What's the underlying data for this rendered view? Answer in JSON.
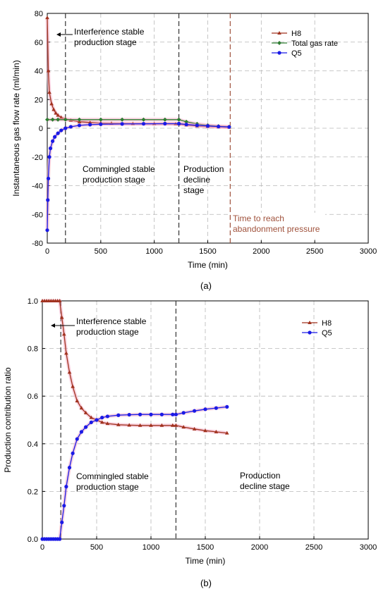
{
  "panel_a_label": "(a)",
  "panel_b_label": "(b)",
  "colors": {
    "H8": "#a0321e",
    "Q5": "#1a1ae6",
    "Total": "#2e7d32",
    "abandon": "#a0523c",
    "vline": "#333333",
    "grid": "#b8b8b8"
  },
  "chart_data": [
    {
      "type": "line",
      "xlabel": "Time (min)",
      "ylabel": "Instantaneous gas flow rate (ml/min)",
      "xlim": [
        0,
        3000
      ],
      "ylim": [
        -80,
        80
      ],
      "xticks": [
        0,
        500,
        1000,
        1500,
        2000,
        2500,
        3000
      ],
      "yticks": [
        -80,
        -60,
        -40,
        -20,
        0,
        20,
        40,
        60,
        80
      ],
      "grid": true,
      "legend_position": "top-right",
      "legend": [
        "H8",
        "Total gas rate",
        "Q5"
      ],
      "vlines": [
        170,
        1230
      ],
      "abandonment_time": 1710,
      "annotations": [
        {
          "text": "Interference stable",
          "text2": "production stage",
          "arrow": true
        },
        {
          "text": "Commingled stable",
          "text2": "production stage"
        },
        {
          "text": "Production",
          "text2": "decline",
          "text3": "stage"
        },
        {
          "text": "Time to reach",
          "text2": "abandonment pressure"
        }
      ],
      "series": [
        {
          "name": "H8",
          "x": [
            0,
            10,
            20,
            40,
            60,
            80,
            100,
            130,
            170,
            220,
            300,
            400,
            500,
            600,
            800,
            1000,
            1200,
            1230,
            1300,
            1400,
            1500,
            1600,
            1700
          ],
          "y": [
            77,
            40,
            25,
            17,
            13,
            10.5,
            9,
            7.5,
            6.5,
            5.5,
            4.5,
            4,
            3.6,
            3.4,
            3.2,
            3.1,
            3,
            3,
            2.3,
            1.6,
            1.2,
            0.9,
            0.7
          ]
        },
        {
          "name": "Total gas rate",
          "x": [
            0,
            50,
            100,
            170,
            300,
            500,
            700,
            900,
            1100,
            1230,
            1300,
            1400,
            1500,
            1600,
            1700
          ],
          "y": [
            6,
            6,
            6,
            6,
            6,
            6,
            6,
            6,
            6,
            6,
            4.5,
            3,
            2,
            1.4,
            1
          ]
        },
        {
          "name": "Q5",
          "x": [
            0,
            5,
            10,
            20,
            30,
            50,
            70,
            100,
            130,
            170,
            220,
            300,
            400,
            500,
            700,
            900,
            1100,
            1230,
            1300,
            1400,
            1500,
            1600,
            1700
          ],
          "y": [
            -71,
            -50,
            -35,
            -20,
            -14,
            -9,
            -6,
            -3.5,
            -1.5,
            0,
            1,
            2,
            2.5,
            2.8,
            3,
            3.1,
            3.2,
            3.2,
            2.6,
            2,
            1.6,
            1.2,
            0.9
          ]
        }
      ]
    },
    {
      "type": "line",
      "xlabel": "Time (min)",
      "ylabel": "Production contribution ratio",
      "xlim": [
        0,
        3000
      ],
      "ylim": [
        0,
        1.0
      ],
      "xticks": [
        0,
        500,
        1000,
        1500,
        2000,
        2500,
        3000
      ],
      "yticks": [
        0.0,
        0.2,
        0.4,
        0.6,
        0.8,
        1.0
      ],
      "grid": true,
      "legend_position": "top-right",
      "legend": [
        "H8",
        "Q5"
      ],
      "vlines": [
        170,
        1230
      ],
      "annotations": [
        {
          "text": "Interference stable",
          "text2": "production stage",
          "arrow": true
        },
        {
          "text": "Commingled stable",
          "text2": "production stage"
        },
        {
          "text": "Production",
          "text2": "decline stage"
        }
      ],
      "series": [
        {
          "name": "H8",
          "x": [
            0,
            20,
            40,
            60,
            80,
            100,
            120,
            140,
            160,
            180,
            200,
            220,
            250,
            280,
            320,
            360,
            400,
            450,
            500,
            550,
            600,
            700,
            800,
            900,
            1000,
            1100,
            1200,
            1230,
            1300,
            1400,
            1500,
            1600,
            1700
          ],
          "y": [
            1.0,
            1.0,
            1.0,
            1.0,
            1.0,
            1.0,
            1.0,
            1.0,
            1.0,
            0.93,
            0.86,
            0.78,
            0.7,
            0.64,
            0.58,
            0.55,
            0.53,
            0.51,
            0.5,
            0.49,
            0.485,
            0.48,
            0.478,
            0.477,
            0.477,
            0.477,
            0.477,
            0.477,
            0.47,
            0.462,
            0.455,
            0.45,
            0.445
          ]
        },
        {
          "name": "Q5",
          "x": [
            0,
            20,
            40,
            60,
            80,
            100,
            120,
            140,
            160,
            180,
            200,
            220,
            250,
            280,
            320,
            360,
            400,
            450,
            500,
            550,
            600,
            700,
            800,
            900,
            1000,
            1100,
            1200,
            1230,
            1300,
            1400,
            1500,
            1600,
            1700
          ],
          "y": [
            0,
            0,
            0,
            0,
            0,
            0,
            0,
            0,
            0,
            0.07,
            0.14,
            0.22,
            0.3,
            0.36,
            0.42,
            0.45,
            0.47,
            0.49,
            0.5,
            0.51,
            0.515,
            0.52,
            0.522,
            0.523,
            0.523,
            0.523,
            0.523,
            0.523,
            0.53,
            0.538,
            0.545,
            0.55,
            0.555
          ]
        }
      ]
    }
  ]
}
